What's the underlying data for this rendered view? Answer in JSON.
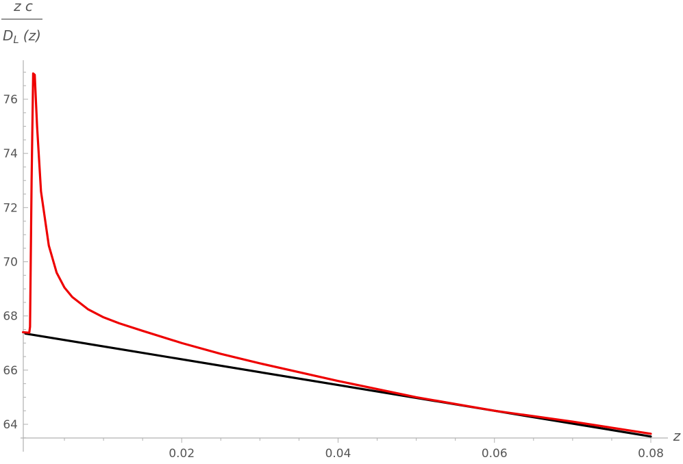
{
  "chart_data": {
    "type": "line",
    "xlabel": "z",
    "ylabel": {
      "numerator": "z c",
      "denominator": "D",
      "denominator_sub": "L",
      "denominator_arg": "(z)"
    },
    "x_ticks": [
      0.02,
      0.04,
      0.06,
      0.08
    ],
    "x_tick_labels": [
      "0.02",
      "0.04",
      "0.06",
      "0.08"
    ],
    "y_ticks": [
      64,
      66,
      68,
      70,
      72,
      74,
      76
    ],
    "y_tick_labels": [
      "64",
      "66",
      "68",
      "70",
      "72",
      "74",
      "76"
    ],
    "xlim": [
      -0.0003,
      0.0815
    ],
    "ylim": [
      63.55,
      77.7
    ],
    "grid": false,
    "series": [
      {
        "color": "#000000",
        "x": [
          0.0,
          0.08
        ],
        "y": [
          67.35,
          63.55
        ]
      },
      {
        "color": "#ee0000",
        "x": [
          -0.0003,
          0.0005,
          0.0006,
          0.0008,
          0.001,
          0.0012,
          0.0015,
          0.002,
          0.003,
          0.004,
          0.005,
          0.006,
          0.008,
          0.01,
          0.012,
          0.015,
          0.02,
          0.025,
          0.03,
          0.04,
          0.05,
          0.06,
          0.07,
          0.08
        ],
        "y": [
          67.4,
          67.38,
          67.6,
          73.0,
          76.95,
          76.9,
          75.0,
          72.6,
          70.6,
          69.6,
          69.05,
          68.7,
          68.25,
          67.95,
          67.73,
          67.45,
          67.0,
          66.6,
          66.25,
          65.6,
          65.0,
          64.5,
          64.1,
          63.65
        ]
      }
    ]
  }
}
